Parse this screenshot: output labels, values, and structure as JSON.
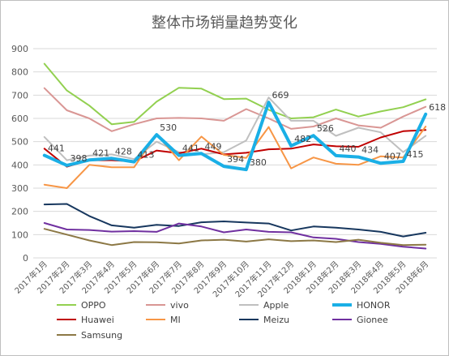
{
  "chart_data": {
    "type": "line",
    "title": "整体市场销量趋势变化",
    "xlabel": "",
    "ylabel": "",
    "ylim": [
      0,
      900
    ],
    "yticks": [
      0,
      100,
      200,
      300,
      400,
      500,
      600,
      700,
      800,
      900
    ],
    "grid": true,
    "legend_position": "bottom",
    "categories": [
      "2017年1月",
      "2017年2月",
      "2017年3月",
      "2017年4月",
      "2017年5月",
      "2017年6月",
      "2017年7月",
      "2017年8月",
      "2017年9月",
      "2017年10月",
      "2017年11月",
      "2017年12月",
      "2018年1月",
      "2018年2月",
      "2018年3月",
      "2018年4月",
      "2018年5月",
      "2018年6月"
    ],
    "series": [
      {
        "name": "OPPO",
        "color": "#92d050",
        "width": 2,
        "values": [
          835,
          720,
          655,
          575,
          585,
          672,
          732,
          728,
          683,
          685,
          637,
          600,
          605,
          638,
          608,
          630,
          648,
          682
        ]
      },
      {
        "name": "vivo",
        "color": "#d99694",
        "width": 2,
        "values": [
          730,
          635,
          600,
          545,
          575,
          600,
          602,
          600,
          590,
          640,
          600,
          555,
          565,
          600,
          570,
          560,
          608,
          650
        ]
      },
      {
        "name": "Apple",
        "color": "#bfbfbf",
        "width": 2,
        "values": [
          520,
          420,
          440,
          445,
          425,
          500,
          455,
          445,
          455,
          505,
          690,
          590,
          590,
          525,
          560,
          540,
          455,
          525
        ]
      },
      {
        "name": "HONOR",
        "color": "#1aafe6",
        "width": 4,
        "values": [
          441,
          398,
          421,
          428,
          413,
          530,
          441,
          449,
          394,
          380,
          669,
          482,
          526,
          440,
          434,
          407,
          415,
          618
        ]
      },
      {
        "name": "Huawei",
        "color": "#c00000",
        "width": 2,
        "values": [
          470,
          392,
          420,
          420,
          415,
          462,
          450,
          470,
          445,
          452,
          467,
          470,
          488,
          480,
          478,
          518,
          545,
          550
        ]
      },
      {
        "name": "MI",
        "color": "#f79646",
        "width": 2,
        "values": [
          315,
          300,
          400,
          390,
          390,
          532,
          420,
          522,
          443,
          430,
          563,
          385,
          432,
          405,
          400,
          437,
          432,
          565
        ]
      },
      {
        "name": "Meizu",
        "color": "#17375e",
        "width": 2,
        "values": [
          230,
          232,
          180,
          140,
          130,
          142,
          137,
          153,
          157,
          152,
          148,
          118,
          135,
          130,
          122,
          112,
          92,
          108
        ]
      },
      {
        "name": "Gionee",
        "color": "#7030a0",
        "width": 2,
        "values": [
          150,
          122,
          120,
          113,
          115,
          112,
          148,
          135,
          110,
          122,
          112,
          110,
          88,
          82,
          68,
          60,
          48,
          40
        ]
      },
      {
        "name": "Samsung",
        "color": "#8c7845",
        "width": 2,
        "values": [
          125,
          100,
          75,
          55,
          68,
          67,
          62,
          75,
          78,
          70,
          80,
          72,
          75,
          68,
          78,
          65,
          55,
          57
        ]
      }
    ],
    "data_labels": [
      {
        "series": "HONOR",
        "index": 0,
        "text": "441"
      },
      {
        "series": "HONOR",
        "index": 1,
        "text": "398"
      },
      {
        "series": "HONOR",
        "index": 2,
        "text": "421"
      },
      {
        "series": "HONOR",
        "index": 3,
        "text": "428"
      },
      {
        "series": "HONOR",
        "index": 4,
        "text": "413"
      },
      {
        "series": "HONOR",
        "index": 5,
        "text": "530"
      },
      {
        "series": "HONOR",
        "index": 6,
        "text": "441"
      },
      {
        "series": "HONOR",
        "index": 7,
        "text": "449"
      },
      {
        "series": "HONOR",
        "index": 8,
        "text": "394"
      },
      {
        "series": "HONOR",
        "index": 9,
        "text": "380"
      },
      {
        "series": "HONOR",
        "index": 10,
        "text": "669"
      },
      {
        "series": "HONOR",
        "index": 11,
        "text": "482"
      },
      {
        "series": "HONOR",
        "index": 12,
        "text": "526"
      },
      {
        "series": "HONOR",
        "index": 13,
        "text": "440"
      },
      {
        "series": "HONOR",
        "index": 14,
        "text": "434"
      },
      {
        "series": "HONOR",
        "index": 15,
        "text": "407"
      },
      {
        "series": "HONOR",
        "index": 16,
        "text": "415"
      },
      {
        "series": "HONOR",
        "index": 17,
        "text": "618"
      }
    ]
  }
}
